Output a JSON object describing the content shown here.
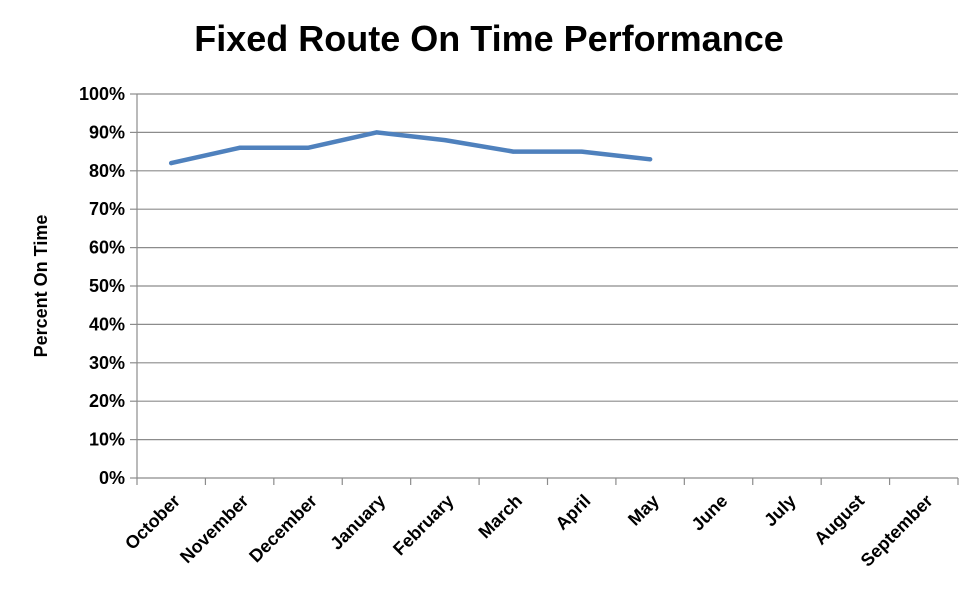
{
  "chart_data": {
    "type": "line",
    "title": "Fixed Route On Time Performance",
    "ylabel": "Percent On Time",
    "xlabel": "",
    "categories": [
      "October",
      "November",
      "December",
      "January",
      "February",
      "March",
      "April",
      "May",
      "June",
      "July",
      "August",
      "September"
    ],
    "y_ticks": [
      "0%",
      "10%",
      "20%",
      "30%",
      "40%",
      "50%",
      "60%",
      "70%",
      "80%",
      "90%",
      "100%"
    ],
    "ylim": [
      0,
      100
    ],
    "grid": true,
    "legend": "none",
    "series": [
      {
        "color": "#4f81bd",
        "values": [
          82,
          86,
          86,
          90,
          88,
          85,
          85,
          83,
          null,
          null,
          null,
          null
        ]
      }
    ]
  }
}
